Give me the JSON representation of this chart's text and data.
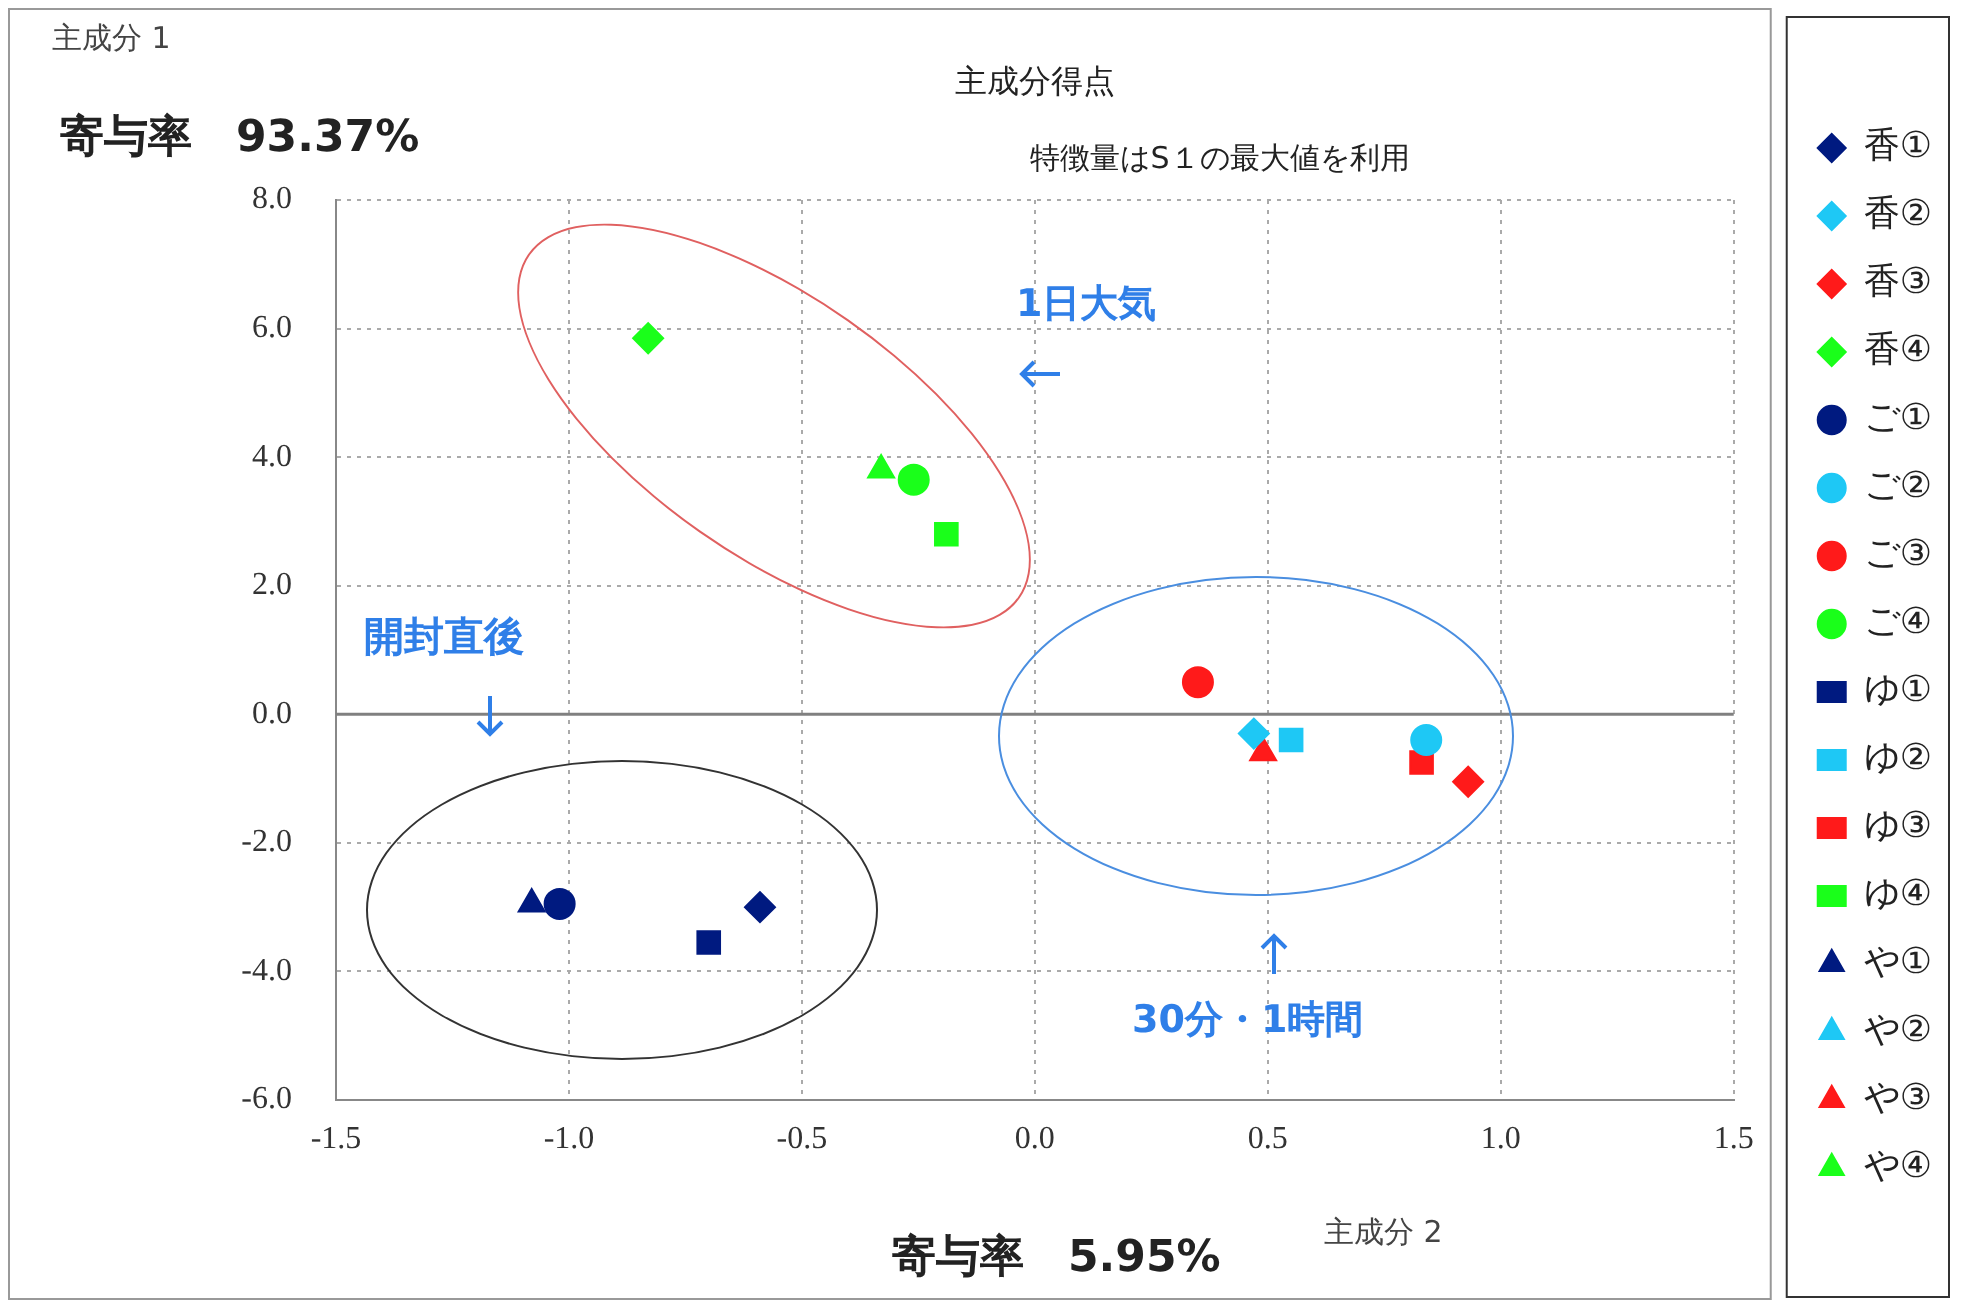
{
  "chart_data": {
    "type": "scatter",
    "title": "主成分得点",
    "subtitle": "特徴量はS１の最大値を利用",
    "xlabel": "主成分 2",
    "ylabel": "主成分 1",
    "annotations": [
      "寄与率　93.37%",
      "寄与率　5.95%",
      "1日大気",
      "開封直後",
      "30分・1時間"
    ],
    "xlim": [
      -1.5,
      1.5
    ],
    "xticks": [
      {
        "value": -1.5,
        "label": "-1.5"
      },
      {
        "value": -1,
        "label": "-1.0"
      },
      {
        "value": -0.5,
        "label": "-0.5"
      },
      {
        "value": 0,
        "label": "0.0"
      },
      {
        "value": 0.5,
        "label": "0.5"
      },
      {
        "value": 1,
        "label": "1.0"
      },
      {
        "value": 1.5,
        "label": "1.5"
      }
    ],
    "ylim": [
      -6,
      8
    ],
    "yticks": [
      {
        "value": -6,
        "label": "-6.0"
      },
      {
        "value": -4,
        "label": "-4.0"
      },
      {
        "value": -2,
        "label": "-2.0"
      },
      {
        "value": 0,
        "label": "0.0"
      },
      {
        "value": 2,
        "label": "2.0"
      },
      {
        "value": 4,
        "label": "4.0"
      },
      {
        "value": 6,
        "label": "6.0"
      },
      {
        "value": 8,
        "label": "8.0"
      }
    ],
    "grid": true,
    "legend": "right",
    "ref_lines": [
      {
        "axis": "y",
        "value": 0,
        "color": "#808080",
        "line_style": "solid"
      }
    ],
    "series": [
      {
        "name": "香①",
        "color": "#001a80",
        "marker": "diamond",
        "x": [
          -0.59
        ],
        "values": [
          -3.0
        ]
      },
      {
        "name": "香②",
        "color": "#1ec8f5",
        "marker": "diamond",
        "x": [
          0.47
        ],
        "values": [
          -0.3
        ]
      },
      {
        "name": "香③",
        "color": "#ff1a1a",
        "marker": "diamond",
        "x": [
          0.93
        ],
        "values": [
          -1.05
        ]
      },
      {
        "name": "香④",
        "color": "#1aff1a",
        "marker": "diamond",
        "x": [
          -0.83
        ],
        "values": [
          5.85
        ]
      },
      {
        "name": "ご①",
        "color": "#001a80",
        "marker": "circle",
        "x": [
          -1.02
        ],
        "values": [
          -2.95
        ]
      },
      {
        "name": "ご②",
        "color": "#1ec8f5",
        "marker": "circle",
        "x": [
          0.84
        ],
        "values": [
          -0.4
        ]
      },
      {
        "name": "ご③",
        "color": "#ff1a1a",
        "marker": "circle",
        "x": [
          0.35
        ],
        "values": [
          0.5
        ]
      },
      {
        "name": "ご④",
        "color": "#1aff1a",
        "marker": "circle",
        "x": [
          -0.26
        ],
        "values": [
          3.65
        ]
      },
      {
        "name": "ゆ①",
        "color": "#001a80",
        "marker": "square",
        "x": [
          -0.7
        ],
        "values": [
          -3.55
        ]
      },
      {
        "name": "ゆ②",
        "color": "#1ec8f5",
        "marker": "square",
        "x": [
          0.55
        ],
        "values": [
          -0.4
        ]
      },
      {
        "name": "ゆ③",
        "color": "#ff1a1a",
        "marker": "square",
        "x": [
          0.83
        ],
        "values": [
          -0.75
        ]
      },
      {
        "name": "ゆ④",
        "color": "#1aff1a",
        "marker": "square",
        "x": [
          -0.19
        ],
        "values": [
          2.8
        ]
      },
      {
        "name": "や①",
        "color": "#001a80",
        "marker": "triangle",
        "x": [
          -1.08
        ],
        "values": [
          -2.95
        ]
      },
      {
        "name": "や②",
        "color": "#1ec8f5",
        "marker": "triangle",
        "x": [
          null
        ],
        "values": [
          null
        ]
      },
      {
        "name": "や③",
        "color": "#ff1a1a",
        "marker": "triangle",
        "x": [
          0.49
        ],
        "values": [
          -0.6
        ]
      },
      {
        "name": "や④",
        "color": "#1aff1a",
        "marker": "triangle",
        "x": [
          -0.33
        ],
        "values": [
          3.8
        ]
      }
    ]
  }
}
